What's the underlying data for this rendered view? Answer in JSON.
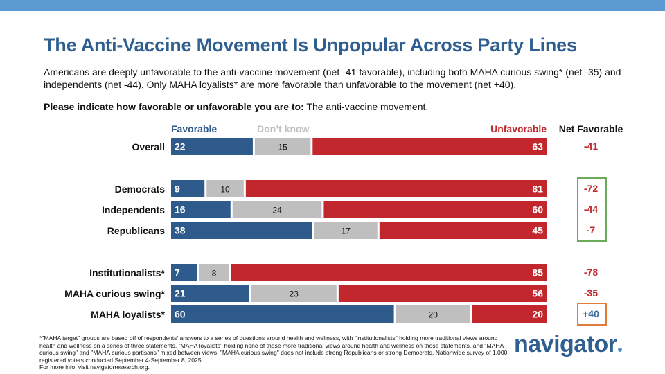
{
  "header": {
    "title": "The Anti-Vaccine Movement Is Unpopular Across Party Lines",
    "subtitle": "Americans are deeply unfavorable to the anti-vaccine movement (net -41 favorable), including both MAHA curious swing* (net -35) and independents (net -44). Only MAHA loyalists* are more favorable than unfavorable to the movement (net +40).",
    "question_label": "Please indicate how favorable or unfavorable you are to:",
    "question_text": " The anti-vaccine movement."
  },
  "colors": {
    "favorable": "#2f5b8c",
    "dont_know": "#bfbfbf",
    "unfavorable": "#c1272d",
    "net_text": "#c1272d",
    "green_box": "#6aaa58",
    "orange_box": "#e07b39",
    "net_positive": "#3c6e9f"
  },
  "chart_data": {
    "type": "bar",
    "orientation": "horizontal-stacked",
    "legend": [
      "Favorable",
      "Don't know",
      "Unfavorable"
    ],
    "net_header": "Net Favorable",
    "groups": [
      {
        "label": "Overall",
        "favorable": 22,
        "dont_know": 15,
        "unfavorable": 63,
        "net": "-41",
        "box": "none"
      },
      {
        "label": "Democrats",
        "favorable": 9,
        "dont_know": 10,
        "unfavorable": 81,
        "net": "-72",
        "box": "green"
      },
      {
        "label": "Independents",
        "favorable": 16,
        "dont_know": 24,
        "unfavorable": 60,
        "net": "-44",
        "box": "green"
      },
      {
        "label": "Republicans",
        "favorable": 38,
        "dont_know": 17,
        "unfavorable": 45,
        "net": "-7",
        "box": "green"
      },
      {
        "label": "Institutionalists*",
        "favorable": 7,
        "dont_know": 8,
        "unfavorable": 85,
        "net": "-78",
        "box": "none"
      },
      {
        "label": "MAHA curious swing*",
        "favorable": 21,
        "dont_know": 23,
        "unfavorable": 56,
        "net": "-35",
        "box": "none"
      },
      {
        "label": "MAHA loyalists*",
        "favorable": 60,
        "dont_know": 20,
        "unfavorable": 20,
        "net": "+40",
        "box": "orange"
      }
    ]
  },
  "footer": {
    "footnote": "*\"MAHA target\" groups are based off of respondents' answers to a series of questions around health and wellness, with \"institutionalists\" holding more traditional views around health and wellness on a series of three statements, \"MAHA loyalists\" holding none of those more traditional views around health and wellness on those statements, and \"MAHA curious swing\" and \"MAHA curious partisans\" mixed between views. \"MAHA curious swing\" does not include strong Republicans or strong Democrats. Nationwide survey of 1,000 registered voters conducted September 4-September 8, 2025.",
    "more_info": "For more info, visit navigatorresearch.org.",
    "logo": "navigator"
  }
}
